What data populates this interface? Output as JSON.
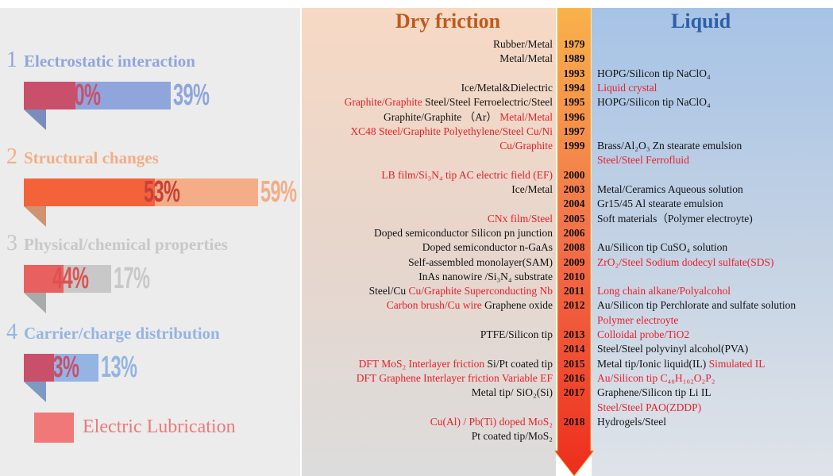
{
  "legend": {
    "label": "Electric Lubrication",
    "color": "#f07878"
  },
  "factors": [
    {
      "number": "1",
      "title": "Electrostatic interaction",
      "color": "#8fa6dd",
      "dry": "20%",
      "liquid": "39%"
    },
    {
      "number": "2",
      "title": "Structural changes",
      "color": "#f4ad86",
      "dry": "53%",
      "liquid": "59%"
    },
    {
      "number": "3",
      "title": "Physical/chemical properties",
      "color": "#c8c8c8",
      "dry": "44%",
      "liquid": "17%"
    },
    {
      "number": "4",
      "title": "Carrier/charge distribution",
      "color": "#94b4e4",
      "dry": "43%",
      "liquid": "13%"
    }
  ],
  "timeline": {
    "dry_title": "Dry friction",
    "liquid_title": "Liquid",
    "highlight_color": "#e8202a",
    "rows": [
      {
        "year": "1979",
        "dry": [
          {
            "text": "Rubber/Metal"
          }
        ],
        "liquid": []
      },
      {
        "year": "1989",
        "dry": [
          {
            "text": "Metal/Metal"
          }
        ],
        "liquid": []
      },
      {
        "year": "1993",
        "dry": [],
        "liquid": [
          {
            "text": "HOPG/Silicon tip NaClO₄"
          }
        ]
      },
      {
        "year": "1994",
        "dry": [
          {
            "text": "Ice/Metal&Dielectric"
          }
        ],
        "liquid": [
          {
            "text": "Liquid crystal",
            "highlight": true
          }
        ]
      },
      {
        "year": "1995",
        "dry": [
          {
            "text": "Graphite/Graphite",
            "highlight": true
          },
          {
            "text": "Steel/Steel Ferroelectric/Steel"
          }
        ],
        "liquid": [
          {
            "text": "HOPG/Silicon tip NaClO₄"
          }
        ]
      },
      {
        "year": "1996",
        "dry": [
          {
            "text": "Graphite/Graphite （Ar）"
          },
          {
            "text": "Metal/Metal",
            "highlight": true
          }
        ],
        "liquid": []
      },
      {
        "year": "1997",
        "dry": [
          {
            "text": "XC48 Steel/Graphite Polyethylene/Steel Cu/Ni",
            "highlight": true
          }
        ],
        "liquid": []
      },
      {
        "year": "1999",
        "dry": [
          {
            "text": "Cu/Graphite",
            "highlight": true
          }
        ],
        "liquid": [
          {
            "text": "Brass/Al₂O₃ Zn stearate emulsion"
          }
        ]
      },
      {
        "year": null,
        "dry": [],
        "liquid": [
          {
            "text": "Steel/Steel Ferrofluid",
            "highlight": true
          }
        ]
      },
      {
        "year": "2000",
        "dry": [
          {
            "text": "LB film/Si₃N₄ tip AC electric field (EF)",
            "highlight": true
          }
        ],
        "liquid": []
      },
      {
        "year": "2003",
        "dry": [
          {
            "text": "Ice/Metal"
          }
        ],
        "liquid": [
          {
            "text": "Metal/Ceramics Aqueous solution"
          }
        ]
      },
      {
        "year": "2004",
        "dry": [],
        "liquid": [
          {
            "text": "Gr15/45 Al stearate emulsion"
          }
        ]
      },
      {
        "year": "2005",
        "dry": [
          {
            "text": "CNx film/Steel",
            "highlight": true
          }
        ],
        "liquid": [
          {
            "text": "Soft materials（Polymer electroyte)"
          }
        ]
      },
      {
        "year": "2006",
        "dry": [
          {
            "text": "Doped semiconductor Silicon pn junction"
          }
        ],
        "liquid": []
      },
      {
        "year": "2008",
        "dry": [
          {
            "text": "Doped semiconductor n-GaAs"
          }
        ],
        "liquid": [
          {
            "text": "Au/Silicon tip CuSO₄ solution"
          }
        ]
      },
      {
        "year": "2009",
        "dry": [
          {
            "text": "Self-assembled monolayer(SAM)"
          }
        ],
        "liquid": [
          {
            "text": "ZrO₂/Steel Sodium dodecyl sulfate(SDS)",
            "highlight": true
          }
        ]
      },
      {
        "year": "2010",
        "dry": [
          {
            "text": "InAs nanowire /Si₃N₄ substrate"
          }
        ],
        "liquid": []
      },
      {
        "year": "2011",
        "dry": [
          {
            "text": "Steel/Cu"
          },
          {
            "text": "Cu/Graphite Superconducting Nb",
            "highlight": true
          }
        ],
        "liquid": [
          {
            "text": "Long chain alkane/Polyalcohol",
            "highlight": true
          }
        ]
      },
      {
        "year": "2012",
        "dry": [
          {
            "text": "Carbon brush/Cu wire",
            "highlight": true
          },
          {
            "text": "Graphene oxide"
          }
        ],
        "liquid": [
          {
            "text": "Au/Silicon tip Perchlorate and sulfate solution"
          }
        ]
      },
      {
        "year": null,
        "dry": [],
        "liquid": [
          {
            "text": "Polymer electroyte",
            "highlight": true
          }
        ]
      },
      {
        "year": "2013",
        "dry": [
          {
            "text": "PTFE/Silicon tip"
          }
        ],
        "liquid": [
          {
            "text": "Colloidal probe/TiO2",
            "highlight": true
          }
        ]
      },
      {
        "year": "2014",
        "dry": [],
        "liquid": [
          {
            "text": "Steel/Steel polyvinyl alcohol(PVA)"
          }
        ]
      },
      {
        "year": "2015",
        "dry": [
          {
            "text": "DFT MoS₂ Interlayer friction",
            "highlight": true
          },
          {
            "text": "Si/Pt coated tip"
          }
        ],
        "liquid": [
          {
            "text": "Metal tip/Ionic liquid(IL)"
          },
          {
            "text": "Simulated IL",
            "highlight": true
          }
        ]
      },
      {
        "year": "2016",
        "dry": [
          {
            "text": "DFT Graphene Interlayer friction Variable EF",
            "highlight": true
          }
        ],
        "liquid": [
          {
            "text": "Au/Silicon tip C₄₈H₁₀₂O₂P₂",
            "highlight": true
          }
        ]
      },
      {
        "year": "2017",
        "dry": [
          {
            "text": "Metal tip/ SiO₂(Si)"
          }
        ],
        "liquid": [
          {
            "text": "Graphene/Silicon tip Li IL"
          }
        ]
      },
      {
        "year": null,
        "dry": [],
        "liquid": [
          {
            "text": "Steel/Steel PAO(ZDDP)",
            "highlight": true
          }
        ]
      },
      {
        "year": "2018",
        "dry": [
          {
            "text": "Cu(Al) / Pb(Ti) doped MoS₂",
            "highlight": true
          }
        ],
        "liquid": [
          {
            "text": "Hydrogels/Steel"
          }
        ]
      },
      {
        "year": null,
        "dry": [
          {
            "text": "Pt coated tip/MoS₂"
          }
        ],
        "liquid": []
      }
    ]
  }
}
